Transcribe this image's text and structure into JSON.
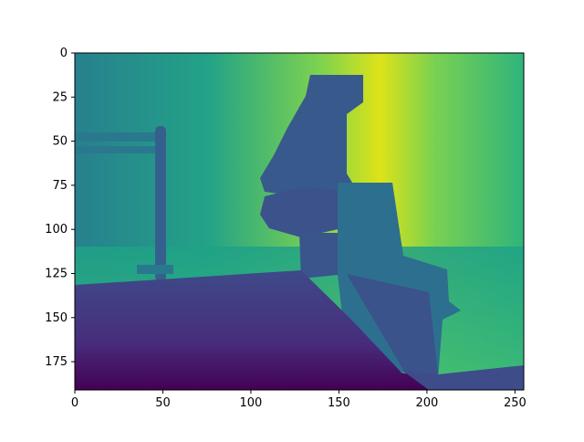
{
  "image": {
    "kind": "depth map rendered with matplotlib imshow",
    "colormap": "viridis",
    "colors": {
      "deep_purple": "#440154",
      "purple": "#46327e",
      "blue": "#365c8d",
      "teal": "#277f8e",
      "green": "#1fa187",
      "light_green": "#4ac16d",
      "yellow_green": "#a0da39",
      "yellow": "#fde725"
    }
  },
  "chart_data": {
    "type": "heatmap",
    "title": "",
    "xlabel": "",
    "ylabel": "",
    "xlim": [
      0,
      255
    ],
    "ylim": [
      191,
      0
    ],
    "x_ticks": [
      "0",
      "50",
      "100",
      "150",
      "200",
      "250"
    ],
    "y_ticks": [
      "0",
      "25",
      "50",
      "75",
      "100",
      "125",
      "150",
      "175"
    ],
    "x_tick_values": [
      0,
      50,
      100,
      150,
      200,
      250
    ],
    "y_tick_values": [
      0,
      25,
      50,
      75,
      100,
      125,
      150,
      175
    ],
    "grid": false,
    "legend": "none"
  }
}
